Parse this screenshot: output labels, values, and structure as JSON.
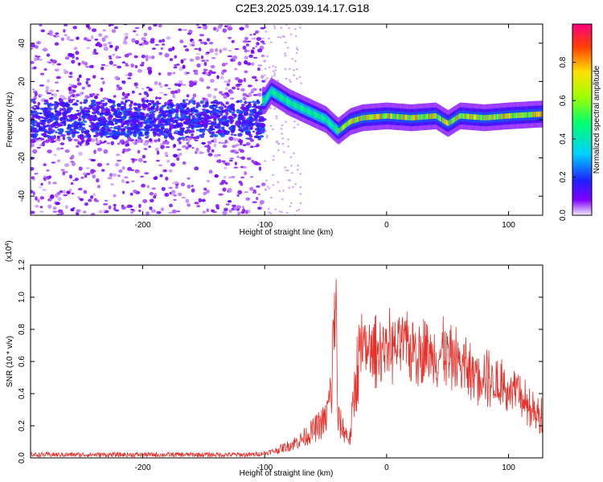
{
  "figure": {
    "title": "C2E3.2025.039.14.17.G18"
  },
  "chart_data": [
    {
      "type": "heatmap",
      "xlabel": "Height of straight line (km)",
      "ylabel": "Frequency (Hz)",
      "xlim": [
        -292,
        128
      ],
      "ylim": [
        -50,
        50
      ],
      "x_ticks": [
        -200,
        -100,
        0,
        100
      ],
      "y_ticks": [
        -40,
        -20,
        0,
        20,
        40
      ],
      "colorbar": {
        "label": "Normalized spectral amplitude",
        "range": [
          0,
          1
        ],
        "ticks": [
          "0.0",
          "0.2",
          "0.4",
          "0.6",
          "0.8"
        ]
      },
      "ridge": {
        "description_points_x": [
          -100,
          -95,
          -90,
          -80,
          -70,
          -60,
          -50,
          -40,
          -30,
          -20,
          0,
          20,
          40,
          50,
          60,
          80,
          100,
          128
        ],
        "frequency_y": [
          10,
          15,
          13,
          9,
          6,
          3,
          0,
          -6,
          -1,
          1,
          2,
          1,
          2,
          -2,
          2,
          1,
          2,
          3
        ]
      }
    },
    {
      "type": "line",
      "xlabel": "Height of straight line (km)",
      "ylabel": "SNR (10 * v/v)",
      "y_multiplier": "(x10^4)",
      "xlim": [
        -292,
        128
      ],
      "ylim": [
        0,
        1.2
      ],
      "x_ticks": [
        -200,
        -100,
        0,
        100
      ],
      "y_ticks": [
        "0.0",
        "0.2",
        "0.4",
        "0.6",
        "0.8",
        "1.0",
        "1.2"
      ],
      "series": [
        {
          "color": "#e8302a",
          "x": [
            -292,
            -250,
            -200,
            -150,
            -110,
            -100,
            -90,
            -80,
            -70,
            -60,
            -50,
            -45,
            -42,
            -40,
            -35,
            -30,
            -25,
            -20,
            -15,
            -10,
            0,
            10,
            20,
            30,
            40,
            50,
            60,
            70,
            80,
            90,
            100,
            110,
            120,
            128
          ],
          "y": [
            0.02,
            0.02,
            0.02,
            0.02,
            0.02,
            0.03,
            0.05,
            0.08,
            0.12,
            0.18,
            0.25,
            0.45,
            1.15,
            0.25,
            0.18,
            0.12,
            0.55,
            0.72,
            0.7,
            0.72,
            0.74,
            0.75,
            0.73,
            0.72,
            0.72,
            0.7,
            0.65,
            0.6,
            0.58,
            0.52,
            0.48,
            0.42,
            0.36,
            0.3
          ]
        }
      ]
    }
  ]
}
